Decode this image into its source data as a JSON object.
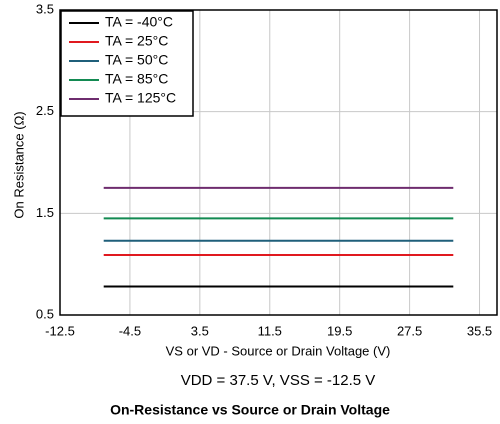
{
  "chart_data": {
    "type": "line",
    "title": "On-Resistance vs Source or Drain Voltage",
    "x_label": "VS or VD - Source or Drain Voltage (V)",
    "y_label": "On Resistance (Ω)",
    "annotation": "VDD = 37.5 V, VSS = -12.5 V",
    "x": [
      -7.5,
      32.5
    ],
    "series": [
      {
        "name": "TA = -40°C",
        "color": "#000000",
        "values": [
          0.78,
          0.78
        ]
      },
      {
        "name": "TA = 25°C",
        "color": "#e0191f",
        "values": [
          1.09,
          1.09
        ]
      },
      {
        "name": "TA = 50°C",
        "color": "#1f5f7a",
        "values": [
          1.23,
          1.23
        ]
      },
      {
        "name": "TA = 85°C",
        "color": "#138a52",
        "values": [
          1.45,
          1.45
        ]
      },
      {
        "name": "TA = 125°C",
        "color": "#6e2c6e",
        "values": [
          1.75,
          1.75
        ]
      }
    ],
    "xlim": [
      -12.5,
      37.5
    ],
    "xticks": [
      -12.5,
      -4.5,
      3.5,
      11.5,
      19.5,
      27.5,
      35.5
    ],
    "ylim": [
      0.5,
      3.5
    ],
    "yticks": [
      0.5,
      1.5,
      2.5,
      3.5
    ],
    "grid": true,
    "legend": "upper left"
  }
}
